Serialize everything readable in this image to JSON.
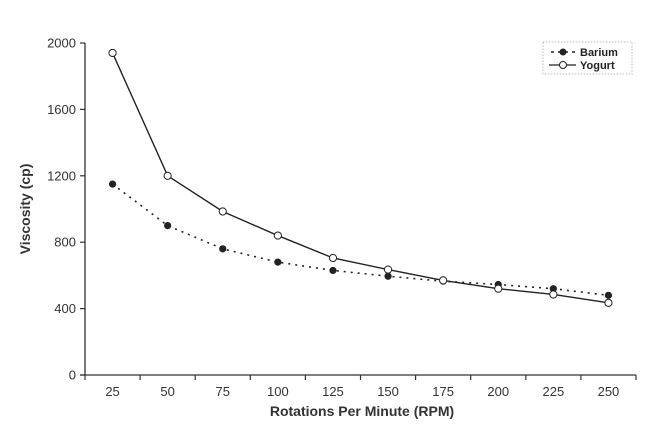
{
  "chart_data": {
    "type": "line",
    "title": "",
    "xlabel": "Rotations Per Minute (RPM)",
    "ylabel": "Viscosity (cp)",
    "categories": [
      "25",
      "50",
      "75",
      "100",
      "125",
      "150",
      "175",
      "200",
      "225",
      "250"
    ],
    "ylim": [
      0,
      2000
    ],
    "yticks": [
      0,
      400,
      800,
      1200,
      1600,
      2000
    ],
    "grid": false,
    "legend_position": "top-right",
    "series": [
      {
        "name": "Barium",
        "style": "dotted",
        "marker": "filled-circle",
        "color": "#222222",
        "values": [
          1150,
          900,
          760,
          680,
          630,
          595,
          565,
          545,
          520,
          480
        ]
      },
      {
        "name": "Yogurt",
        "style": "solid",
        "marker": "open-circle",
        "color": "#222222",
        "values": [
          1940,
          1200,
          985,
          840,
          705,
          635,
          570,
          520,
          485,
          435
        ]
      }
    ]
  },
  "legend": {
    "items": [
      {
        "label": "Barium"
      },
      {
        "label": "Yogurt"
      }
    ]
  },
  "axes": {
    "x_title": "Rotations Per Minute (RPM)",
    "y_title": "Viscosity (cp)"
  }
}
